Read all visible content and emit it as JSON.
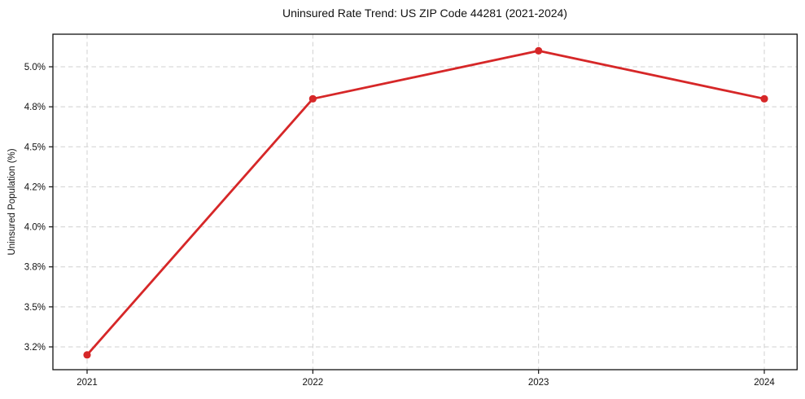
{
  "chart_data": {
    "type": "line",
    "title": "Uninsured Rate Trend: US ZIP Code 44281 (2021-2024)",
    "xlabel": "",
    "ylabel": "Uninsured Population (%)",
    "x": [
      2021,
      2022,
      2023,
      2024
    ],
    "x_tick_labels": [
      "2021",
      "2022",
      "2023",
      "2024"
    ],
    "y_tick_labels": [
      "5.0%",
      "4.8%",
      "4.5%",
      "4.2%",
      "4.0%",
      "3.8%",
      "3.5%",
      "3.2%"
    ],
    "y_tick_values": [
      5.0,
      4.8,
      4.5,
      4.2,
      4.0,
      3.8,
      3.5,
      3.2
    ],
    "values": [
      3.16,
      4.84,
      5.08,
      4.84
    ],
    "grid": true,
    "grid_style": "dashed",
    "legend_position": "none",
    "colors": {
      "line": "#d62728",
      "marker": "#d62728",
      "grid": "#d0d0d0",
      "spine": "#111111",
      "text": "#111111",
      "background": "#ffffff"
    }
  }
}
